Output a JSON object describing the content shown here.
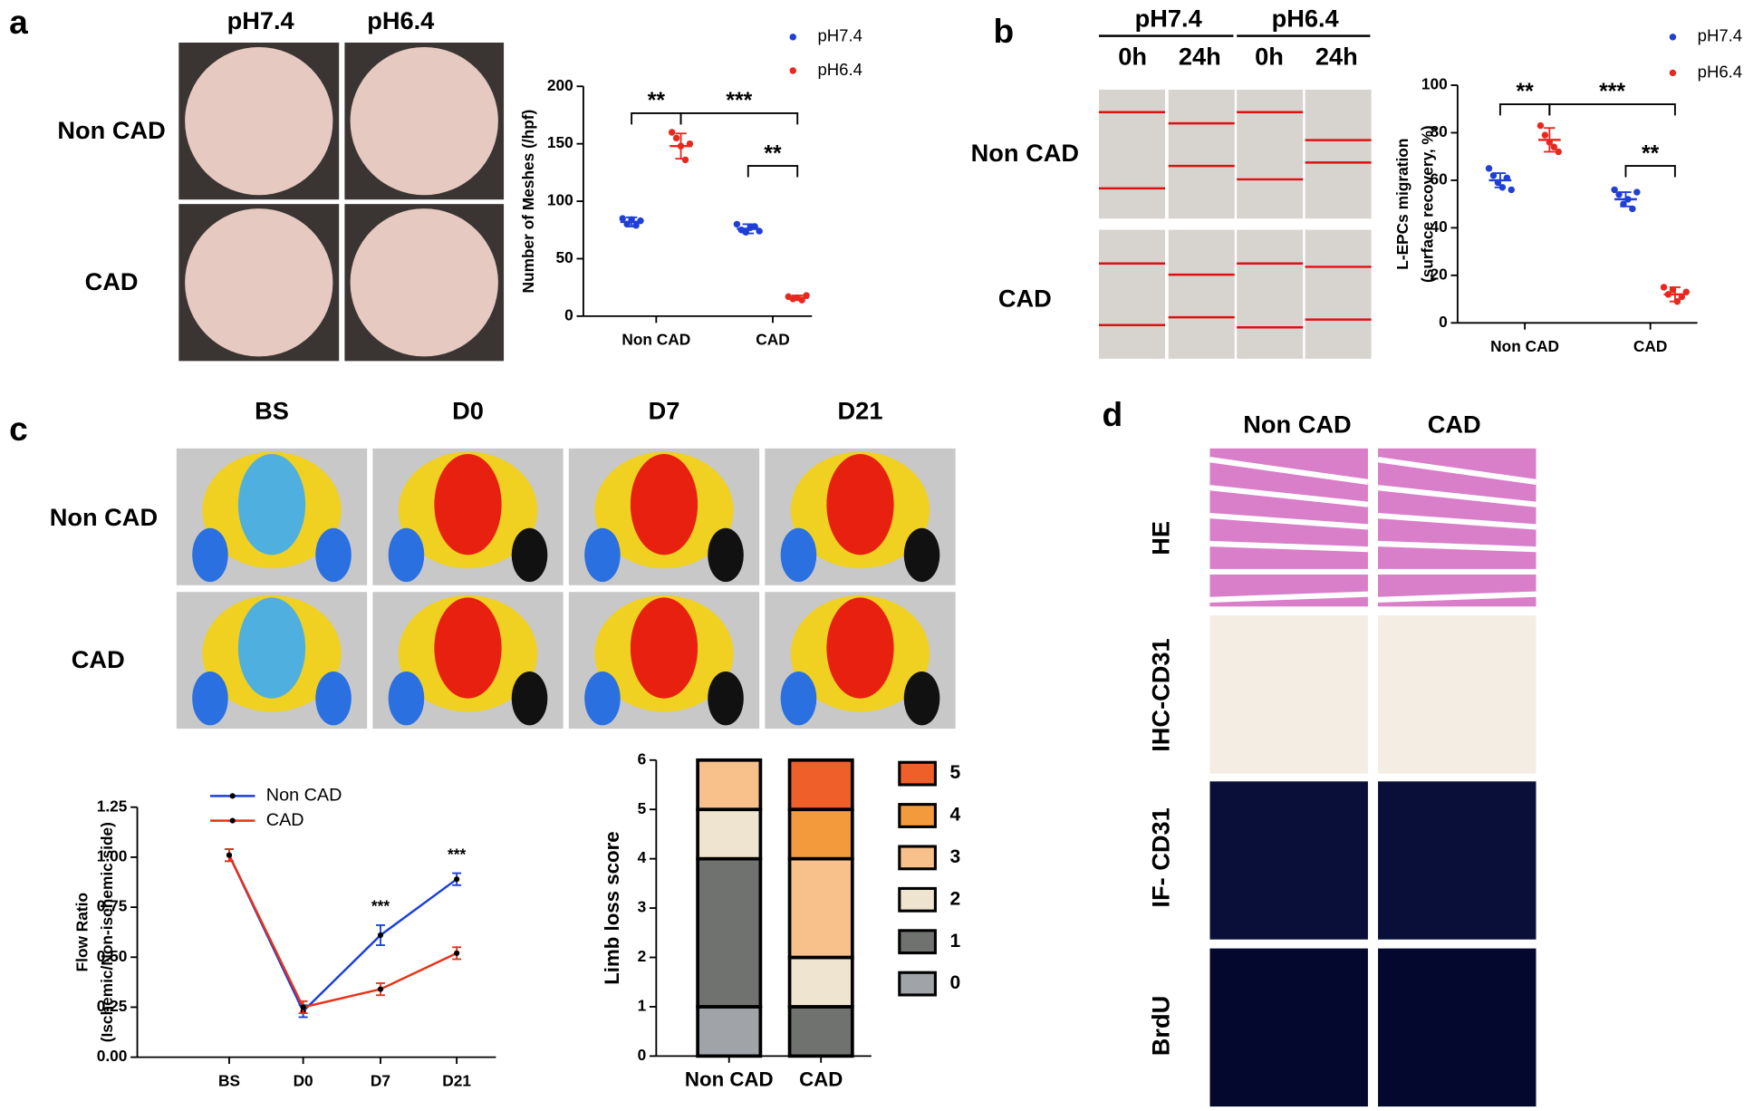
{
  "figure": {
    "panels": [
      "a",
      "b",
      "c",
      "d"
    ],
    "a": {
      "cols": [
        "pH7.4",
        "pH6.4"
      ],
      "rows": [
        "Non CAD",
        "CAD"
      ]
    },
    "b": {
      "cols": [
        "pH7.4",
        "pH6.4"
      ],
      "times": [
        "0h",
        "24h",
        "0h",
        "24h"
      ],
      "rows": [
        "Non CAD",
        "CAD"
      ]
    },
    "c": {
      "cols": [
        "BS",
        "D0",
        "D7",
        "D21"
      ],
      "rows": [
        "Non CAD",
        "CAD"
      ]
    },
    "d": {
      "cols": [
        "Non CAD",
        "CAD"
      ],
      "rows": [
        "HE",
        "IHC-CD31",
        "IF- CD31",
        "BrdU"
      ]
    }
  },
  "chart_data": [
    {
      "type": "dot",
      "categories": [
        "Non CAD",
        "CAD"
      ],
      "ylabel": [
        "Number of Meshes (/hpf)"
      ],
      "ylim": [
        0,
        200
      ],
      "yticks": [
        0,
        50,
        100,
        150,
        200
      ],
      "series": [
        {
          "name": "pH7.4",
          "color": "#1f3fd6",
          "values": [
            82,
            76
          ],
          "errors": [
            4,
            4
          ],
          "points": [
            [
              85,
              80,
              84,
              79,
              83
            ],
            [
              80,
              75,
              73,
              77,
              78,
              74
            ]
          ]
        },
        {
          "name": "pH6.4",
          "color": "#e8281f",
          "values": [
            148,
            16
          ],
          "errors": [
            11,
            2
          ],
          "points": [
            [
              160,
              155,
              148,
              136,
              150
            ],
            [
              17,
              15,
              16,
              14,
              18
            ]
          ]
        }
      ],
      "annotations": [
        "**",
        "***",
        "**"
      ]
    },
    {
      "type": "dot",
      "categories": [
        "Non CAD",
        "CAD"
      ],
      "ylabel": [
        "L-EPCs  migration",
        "(surface recovery, %)"
      ],
      "ylim": [
        0,
        100
      ],
      "yticks": [
        0,
        20,
        40,
        60,
        80,
        100
      ],
      "series": [
        {
          "name": "pH7.4",
          "color": "#1f3fd6",
          "values": [
            60,
            52
          ],
          "errors": [
            3,
            3
          ],
          "points": [
            [
              65,
              62,
              59,
              57,
              61,
              56
            ],
            [
              56,
              54,
              50,
              52,
              48,
              55
            ]
          ]
        },
        {
          "name": "pH6.4",
          "color": "#e8281f",
          "values": [
            77,
            12
          ],
          "errors": [
            5,
            3
          ],
          "points": [
            [
              83,
              79,
              76,
              74,
              72
            ],
            [
              15,
              12,
              14,
              9,
              11,
              13
            ]
          ]
        }
      ],
      "annotations": [
        "**",
        "***",
        "**"
      ]
    },
    {
      "type": "line",
      "categories": [
        "BS",
        "D0",
        "D7",
        "D21"
      ],
      "ylabel": [
        "Flow Ratio",
        "(Ischemic/Non-ischemic side)"
      ],
      "ylim": [
        0,
        1.25
      ],
      "yticks": [
        {
          "value": 0,
          "label": "0.00"
        },
        0.25,
        {
          "value": 0.5,
          "label": "0.50"
        },
        0.75,
        {
          "value": 1,
          "label": "1.00"
        },
        1.25
      ],
      "series": [
        {
          "name": "Non CAD",
          "color": "#1a3fd8",
          "values": [
            1.01,
            0.23,
            0.61,
            0.89
          ],
          "errors": [
            0.03,
            0.03,
            0.05,
            0.03
          ]
        },
        {
          "name": "CAD",
          "color": "#e8321a",
          "values": [
            1.01,
            0.25,
            0.34,
            0.52
          ],
          "errors": [
            0.03,
            0.03,
            0.03,
            0.03
          ]
        }
      ],
      "annotations": [
        "***",
        "***"
      ]
    },
    {
      "type": "stacked_bar",
      "categories": [
        "Non CAD",
        "CAD"
      ],
      "ylabel": [
        "Limb loss score"
      ],
      "ylim": [
        0,
        6
      ],
      "yticks": [
        0,
        1,
        2,
        3,
        4,
        5,
        6
      ],
      "series": [
        {
          "name": "0",
          "color": "#a0a3a8",
          "values": [
            1,
            0
          ]
        },
        {
          "name": "1",
          "color": "#6f726e",
          "values": [
            3,
            1
          ]
        },
        {
          "name": "2",
          "color": "#efe4d0",
          "values": [
            1,
            1
          ]
        },
        {
          "name": "3",
          "color": "#f8c08a",
          "values": [
            1,
            2
          ]
        },
        {
          "name": "4",
          "color": "#f39a3d",
          "values": [
            0,
            1
          ]
        },
        {
          "name": "5",
          "color": "#ee5f2a",
          "values": [
            0,
            1
          ]
        }
      ]
    }
  ]
}
